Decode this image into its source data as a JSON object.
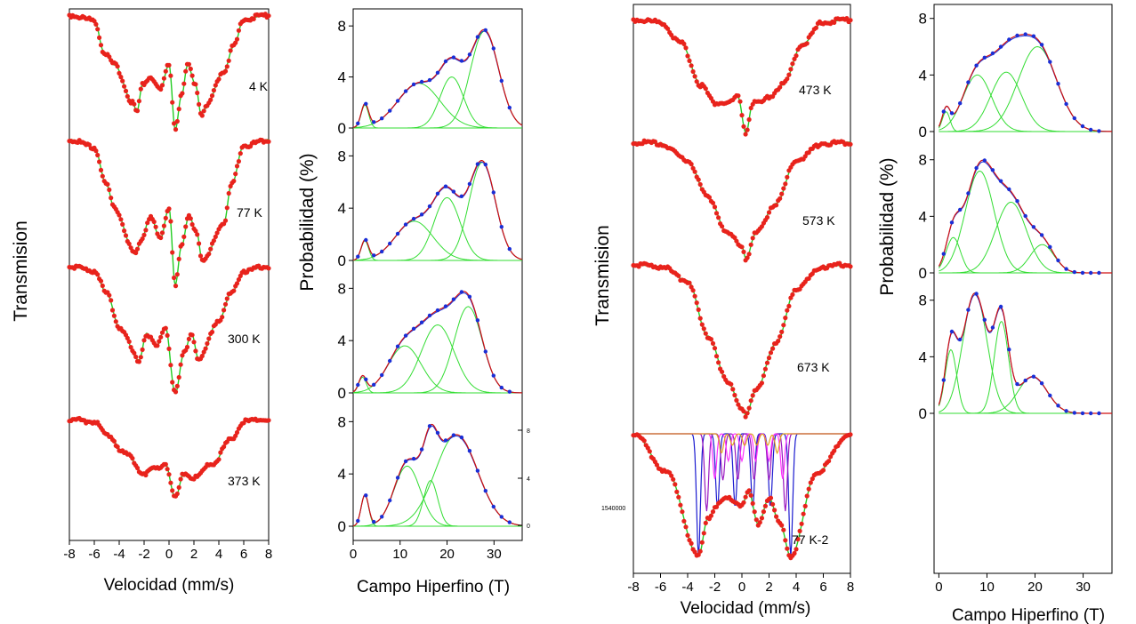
{
  "figure": {
    "left_group": {
      "spectra_panel": {
        "ylabel": "Transmision",
        "xlabel": "Velocidad (mm/s)",
        "xticks": [
          "-8",
          "-6",
          "-4",
          "-2",
          "0",
          "2",
          "4",
          "6",
          "8"
        ],
        "spectra": [
          {
            "label": "4 K",
            "shape": "sextet"
          },
          {
            "label": "77 K",
            "shape": "sextet"
          },
          {
            "label": "300 K",
            "shape": "sextet"
          },
          {
            "label": "373 K",
            "shape": "sextet-weak"
          }
        ]
      },
      "distribution_panel": {
        "ylabel": "Probabilidad (%)",
        "xlabel": "Campo Hiperfino (T)",
        "xticks": [
          "0",
          "10",
          "20",
          "30"
        ],
        "yticks": [
          "0",
          "4",
          "8"
        ],
        "right_ticks": [
          "8",
          "4",
          "0"
        ]
      }
    },
    "right_group": {
      "spectra_panel": {
        "ylabel": "Transmision",
        "xlabel": "Velocidad (mm/s)",
        "xticks": [
          "-8",
          "-6",
          "-4",
          "-2",
          "0",
          "2",
          "4",
          "6",
          "8"
        ],
        "side_tick_label": "1540000",
        "spectra": [
          {
            "label": "473 K",
            "shape": "doublet"
          },
          {
            "label": "573 K",
            "shape": "collapsed"
          },
          {
            "label": "673 K",
            "shape": "collapsed"
          },
          {
            "label": "77 K-2",
            "shape": "multi-sextet"
          }
        ]
      },
      "distribution_panel": {
        "ylabel": "Probabilidad (%)",
        "xlabel": "Campo Hiperfino (T)",
        "xticks": [
          "0",
          "10",
          "20",
          "30"
        ],
        "yticks": [
          "0",
          "4",
          "8"
        ]
      }
    }
  },
  "colors": {
    "data_points": "#e8231c",
    "fit_line": "#22cc22",
    "total_fit": "#d01010",
    "dist_points": "#1a2ed6",
    "component": "#33dd33",
    "subspectrum_blue": "#1b1bd0",
    "subspectrum_purple": "#9a18c0",
    "subspectrum_magenta": "#ff30ff",
    "subspectrum_orange": "#e0a020"
  },
  "chart_data": [
    {
      "type": "scatter",
      "title": "",
      "xlabel": "Velocidad (mm/s)",
      "ylabel": "Transmision",
      "xlim": [
        -8,
        8
      ],
      "series": [
        {
          "name": "4 K",
          "kind": "sextet",
          "depth": 0.95,
          "x": [
            -8,
            -6,
            -5.2,
            -4.4,
            -2.9,
            -2.6,
            -2.1,
            -1.5,
            -0.7,
            0,
            0.5,
            1.0,
            1.5,
            2.1,
            2.6,
            2.9,
            4.4,
            5.2,
            6,
            8
          ],
          "y": [
            1,
            0.96,
            0.7,
            0.6,
            0.3,
            0.22,
            0.45,
            0.5,
            0.4,
            0.6,
            0.08,
            0.35,
            0.6,
            0.45,
            0.2,
            0.25,
            0.55,
            0.75,
            0.97,
            1
          ]
        },
        {
          "name": "77 K",
          "kind": "sextet",
          "depth": 0.95,
          "x": [
            -8,
            -6,
            -5,
            -4.4,
            -2.7,
            -2.2,
            -1.5,
            -0.7,
            0,
            0.5,
            1.0,
            1.6,
            2.2,
            2.7,
            4.4,
            5,
            6,
            8
          ],
          "y": [
            1,
            0.95,
            0.7,
            0.55,
            0.25,
            0.35,
            0.5,
            0.35,
            0.55,
            0.05,
            0.3,
            0.5,
            0.4,
            0.2,
            0.45,
            0.7,
            0.96,
            1
          ]
        },
        {
          "name": "300 K",
          "kind": "sextet",
          "depth": 0.9,
          "x": [
            -8,
            -6,
            -5,
            -4,
            -2.4,
            -1.8,
            -1,
            -0.3,
            0.5,
            1.2,
            1.8,
            2.4,
            4,
            5,
            6,
            8
          ],
          "y": [
            1,
            0.97,
            0.8,
            0.55,
            0.3,
            0.5,
            0.4,
            0.55,
            0.05,
            0.35,
            0.5,
            0.3,
            0.6,
            0.8,
            0.97,
            1
          ]
        },
        {
          "name": "373 K",
          "kind": "sextet-weak",
          "depth": 0.85,
          "x": [
            -8,
            -6,
            -5,
            -3.5,
            -2,
            -1,
            -0.3,
            0.5,
            1.2,
            2,
            3.5,
            5,
            6,
            8
          ],
          "y": [
            1,
            0.98,
            0.85,
            0.65,
            0.45,
            0.5,
            0.55,
            0.2,
            0.45,
            0.4,
            0.55,
            0.8,
            0.98,
            1
          ]
        }
      ]
    },
    {
      "type": "line",
      "title": "",
      "xlabel": "Campo Hiperfino (T)",
      "ylabel": "Probabilidad (%)",
      "xlim": [
        0,
        36
      ],
      "ylim": [
        0,
        8.5
      ],
      "panels": [
        {
          "components": [
            {
              "mu": 2.5,
              "sigma": 0.8,
              "amp": 1.8
            },
            {
              "mu": 14,
              "sigma": 4.5,
              "amp": 3.5
            },
            {
              "mu": 21,
              "sigma": 2.5,
              "amp": 4.0
            },
            {
              "mu": 28,
              "sigma": 3.0,
              "amp": 7.6
            }
          ]
        },
        {
          "components": [
            {
              "mu": 2.5,
              "sigma": 0.8,
              "amp": 1.5
            },
            {
              "mu": 13,
              "sigma": 4.0,
              "amp": 3.0
            },
            {
              "mu": 20,
              "sigma": 2.8,
              "amp": 4.8
            },
            {
              "mu": 27.5,
              "sigma": 2.8,
              "amp": 7.5
            }
          ]
        },
        {
          "components": [
            {
              "mu": 2,
              "sigma": 0.8,
              "amp": 1.2
            },
            {
              "mu": 11,
              "sigma": 3.5,
              "amp": 3.6
            },
            {
              "mu": 18,
              "sigma": 3.5,
              "amp": 5.2
            },
            {
              "mu": 24.5,
              "sigma": 3.0,
              "amp": 6.6
            }
          ]
        },
        {
          "components": [
            {
              "mu": 2.5,
              "sigma": 0.8,
              "amp": 2.4
            },
            {
              "mu": 11.5,
              "sigma": 2.8,
              "amp": 4.6
            },
            {
              "mu": 16.5,
              "sigma": 1.5,
              "amp": 3.5
            },
            {
              "mu": 22,
              "sigma": 4.5,
              "amp": 7.0
            }
          ]
        }
      ]
    },
    {
      "type": "scatter",
      "title": "",
      "xlabel": "Velocidad (mm/s)",
      "ylabel": "Transmision",
      "xlim": [
        -8,
        8
      ],
      "series": [
        {
          "name": "473 K",
          "kind": "doublet",
          "depth": 0.9,
          "x": [
            -8,
            -6,
            -4.5,
            -3,
            -2,
            -1,
            -0.3,
            0.3,
            0.8,
            1.5,
            2,
            3,
            4.5,
            6,
            8
          ],
          "y": [
            1,
            0.98,
            0.8,
            0.45,
            0.3,
            0.3,
            0.35,
            0.05,
            0.3,
            0.3,
            0.35,
            0.45,
            0.8,
            0.98,
            1
          ]
        },
        {
          "name": "573 K",
          "kind": "collapsed",
          "depth": 0.9,
          "x": [
            -8,
            -6,
            -4,
            -2.5,
            -1,
            0,
            0.3,
            1,
            2.5,
            4,
            6,
            8
          ],
          "y": [
            1,
            0.99,
            0.85,
            0.55,
            0.25,
            0.15,
            0.05,
            0.25,
            0.5,
            0.85,
            0.99,
            1
          ]
        },
        {
          "name": "673 K",
          "kind": "collapsed",
          "depth": 0.9,
          "x": [
            -8,
            -6,
            -4,
            -2.5,
            -1,
            0,
            0.3,
            1,
            2.5,
            4,
            6,
            8
          ],
          "y": [
            1,
            0.99,
            0.9,
            0.55,
            0.25,
            0.1,
            0.05,
            0.2,
            0.5,
            0.85,
            0.99,
            1
          ]
        },
        {
          "name": "77 K-2",
          "kind": "multi-sextet",
          "depth": 0.95,
          "x": [
            -8,
            -5.5,
            -3.2,
            -2.5,
            -1.8,
            -1,
            0,
            0.5,
            1.2,
            2,
            2.8,
            3.6,
            5.5,
            8
          ],
          "y": [
            1,
            0.7,
            0.05,
            0.35,
            0.45,
            0.5,
            0.45,
            0.55,
            0.3,
            0.5,
            0.3,
            0.05,
            0.7,
            1
          ]
        }
      ]
    },
    {
      "type": "line",
      "title": "",
      "xlabel": "Campo Hiperfino (T)",
      "ylabel": "Probabilidad (%)",
      "xlim": [
        -1,
        36
      ],
      "ylim": [
        0,
        8.8
      ],
      "panels": [
        {
          "components": [
            {
              "mu": 1.5,
              "sigma": 0.8,
              "amp": 1.4
            },
            {
              "mu": 8,
              "sigma": 3.0,
              "amp": 4.0
            },
            {
              "mu": 14,
              "sigma": 3.2,
              "amp": 4.2
            },
            {
              "mu": 20.5,
              "sigma": 4.0,
              "amp": 6.0
            }
          ]
        },
        {
          "components": [
            {
              "mu": 3,
              "sigma": 1.5,
              "amp": 2.5
            },
            {
              "mu": 8.5,
              "sigma": 3.0,
              "amp": 7.2
            },
            {
              "mu": 15,
              "sigma": 3.2,
              "amp": 5.0
            },
            {
              "mu": 21.5,
              "sigma": 2.5,
              "amp": 2.0
            }
          ]
        },
        {
          "components": [
            {
              "mu": 2.5,
              "sigma": 1.2,
              "amp": 4.5
            },
            {
              "mu": 7.5,
              "sigma": 2.5,
              "amp": 8.5
            },
            {
              "mu": 13,
              "sigma": 1.5,
              "amp": 6.5
            },
            {
              "mu": 19.5,
              "sigma": 3.0,
              "amp": 2.6
            }
          ]
        }
      ]
    }
  ]
}
